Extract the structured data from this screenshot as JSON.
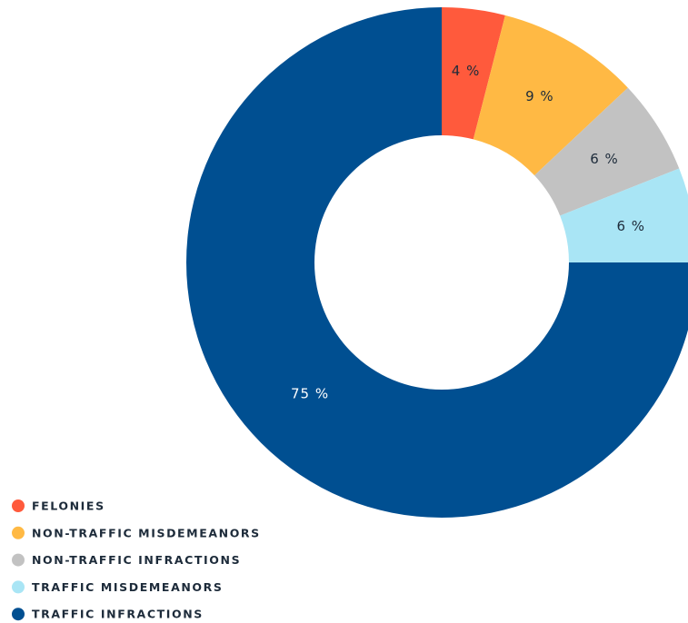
{
  "chart_data": {
    "type": "pie",
    "categories": [
      "FELONIES",
      "NON-TRAFFIC MISDEMEANORS",
      "NON-TRAFFIC INFRACTIONS",
      "TRAFFIC MISDEMEANORS",
      "TRAFFIC INFRACTIONS"
    ],
    "values": [
      4,
      9,
      6,
      6,
      75
    ],
    "value_labels": [
      "4 %",
      "9 %",
      "6 %",
      "6 %",
      "75 %"
    ],
    "colors": [
      "#ff5a3c",
      "#ffb944",
      "#c2c2c2",
      "#a9e5f5",
      "#004f91"
    ]
  }
}
